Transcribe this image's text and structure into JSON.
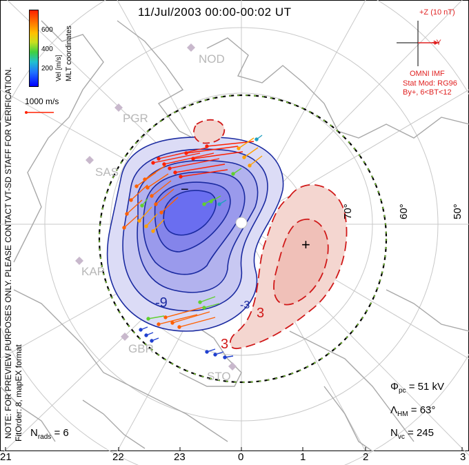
{
  "title": "11/Jul/2003 00:00-00:02 UT",
  "colorbar": {
    "label": "Vel [m/s]",
    "ticks": [
      "600",
      "400",
      "200"
    ]
  },
  "coords_label": "MLT coordinates",
  "ref_vector_label": "1000 m/s",
  "note_text": "NOTE: FOR PREVIEW PURPOSES ONLY. PLEASE CONTACT VT-SD STAFF FOR VERIFICATION.",
  "fit_text": "FitOrder: 8,  mapEX format",
  "imf": {
    "z_label": "+Z (10 nT)",
    "y_label": "+Y",
    "source": "OMNI IMF",
    "model_line1": "Stat Mod: RG96",
    "model_line2": "By+, 6<BT<12"
  },
  "stations": [
    "NOD",
    "PGR",
    "SAS",
    "KAP",
    "GBR",
    "STO"
  ],
  "latitude_labels": [
    "70°",
    "60°",
    "50°"
  ],
  "contour_labels": [
    "-9",
    "3",
    "-3",
    "3"
  ],
  "potential_markers": {
    "min": "−",
    "max": "+"
  },
  "stats": {
    "phi_pc": "Φpc = 51 kV",
    "lambda_hm": "ΛHM = 63°",
    "n_vc": "Nvc = 245",
    "n_rads": "Nrads = 6"
  },
  "stats_parts": {
    "phi_sym": "Φ",
    "phi_sub": "pc",
    "phi_val": " = 51 kV",
    "lam_sym": "Λ",
    "lam_sub": "HM",
    "lam_val": " = 63°",
    "nvc_sym": "N",
    "nvc_sub": "vc",
    "nvc_val": " = 245",
    "nrads_sym": "N",
    "nrads_sub": "rads",
    "nrads_val": " = 6"
  },
  "mlt_axis": [
    "21",
    "22",
    "23",
    "0",
    "1",
    "2",
    "3"
  ],
  "colors": {
    "negative_cell": "#6a6ef0",
    "positive_cell": "#f0b8b0",
    "contour_neg": "#1a2aa0",
    "contour_pos": "#d01818",
    "boundary": "#000000"
  }
}
